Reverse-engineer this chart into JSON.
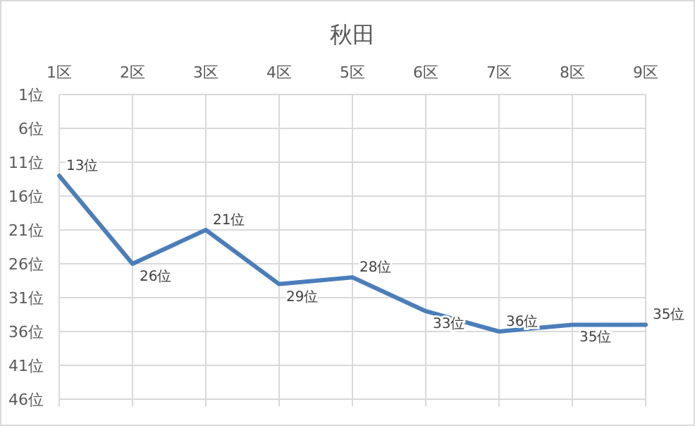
{
  "chart_data": {
    "type": "line",
    "title": "秋田",
    "categories": [
      "1区",
      "2区",
      "3区",
      "4区",
      "5区",
      "6区",
      "7区",
      "8区",
      "9区"
    ],
    "series": [
      {
        "color": "#4a7ebb",
        "values": [
          13,
          26,
          21,
          29,
          28,
          33,
          36,
          35,
          35
        ],
        "value_labels": [
          "13位",
          "26位",
          "21位",
          "29位",
          "28位",
          "33位",
          "36位",
          "35位",
          "35位"
        ]
      }
    ],
    "ylim": [
      46,
      1
    ],
    "yticks": [
      {
        "value": 1,
        "label": "1位"
      },
      {
        "value": 6,
        "label": "6位"
      },
      {
        "value": 11,
        "label": "11位"
      },
      {
        "value": 16,
        "label": "16位"
      },
      {
        "value": 21,
        "label": "21位"
      },
      {
        "value": 26,
        "label": "26位"
      },
      {
        "value": 31,
        "label": "31位"
      },
      {
        "value": 36,
        "label": "36位"
      },
      {
        "value": 41,
        "label": "41位"
      },
      {
        "value": 46,
        "label": "46位"
      }
    ],
    "grid": true
  }
}
